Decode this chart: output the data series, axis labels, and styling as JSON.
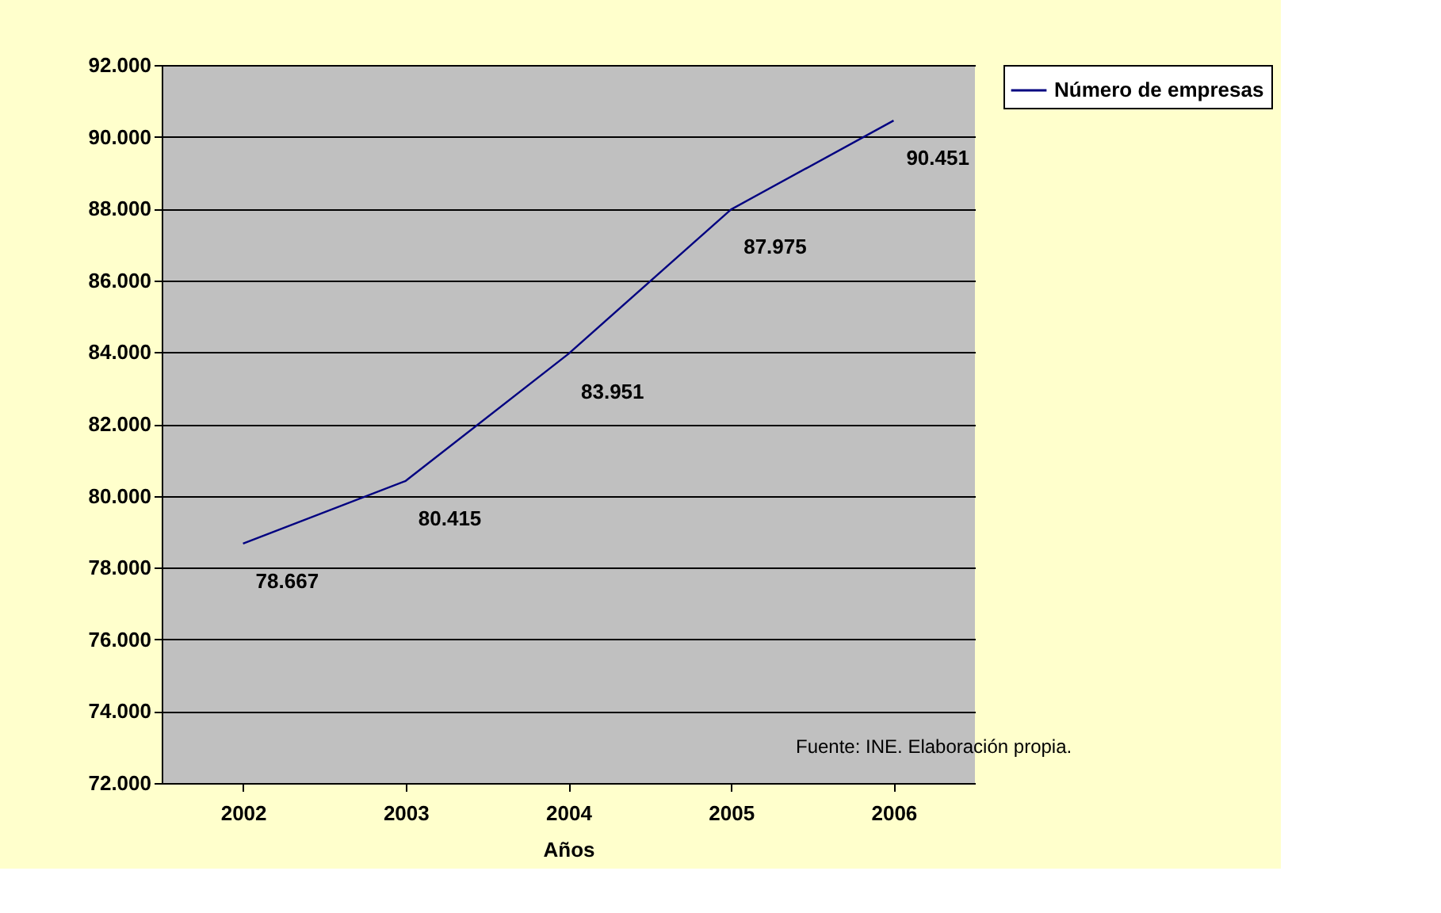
{
  "chart_data": {
    "type": "line",
    "xlabel": "Años",
    "categories": [
      "2002",
      "2003",
      "2004",
      "2005",
      "2006"
    ],
    "series": [
      {
        "name": "Número de empresas",
        "color": "#000080",
        "values": [
          78667,
          80415,
          83951,
          87975,
          90451
        ],
        "value_labels": [
          "78.667",
          "80.415",
          "83.951",
          "87.975",
          "90.451"
        ]
      }
    ],
    "ylim": [
      72000,
      92000
    ],
    "yticks": [
      {
        "value": 72000,
        "label": "72.000"
      },
      {
        "value": 74000,
        "label": "74.000"
      },
      {
        "value": 76000,
        "label": "76.000"
      },
      {
        "value": 78000,
        "label": "78.000"
      },
      {
        "value": 80000,
        "label": "80.000"
      },
      {
        "value": 82000,
        "label": "82.000"
      },
      {
        "value": 84000,
        "label": "84.000"
      },
      {
        "value": 86000,
        "label": "86.000"
      },
      {
        "value": 88000,
        "label": "88.000"
      },
      {
        "value": 90000,
        "label": "90.000"
      },
      {
        "value": 92000,
        "label": "92.000"
      }
    ],
    "grid": "y",
    "legend": "right",
    "marker": "none",
    "line_style": "solid",
    "annotations": [
      "Fuente: INE. Elaboración propia."
    ]
  }
}
